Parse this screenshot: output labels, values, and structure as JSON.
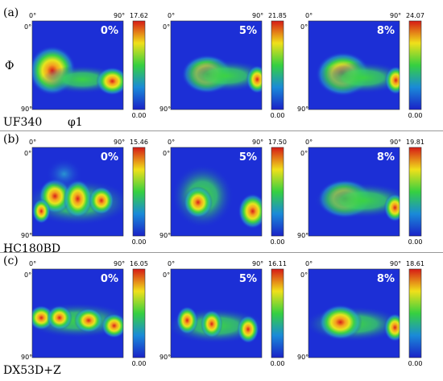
{
  "colors": {
    "background": "#1c2fd6",
    "low": "#1a2ad4",
    "mid": "#2fd64a",
    "high": "#d61a16"
  },
  "rows": [
    {
      "tag": "(a)",
      "material": "UF340",
      "phi_label": "Φ",
      "phi1_label": "φ1",
      "panels": [
        {
          "percent": "0%",
          "x_min": "0°",
          "x_max": "90°",
          "y_min": "0°",
          "y_max": "90°",
          "cb_max": "17.62",
          "cb_min": "0.00"
        },
        {
          "percent": "5%",
          "x_min": "0°",
          "x_max": "90°",
          "y_min": "0°",
          "y_max": "90°",
          "cb_max": "21.85",
          "cb_min": "0.00"
        },
        {
          "percent": "8%",
          "x_min": "0°",
          "x_max": "90°",
          "y_min": "0°",
          "y_max": "90°",
          "cb_max": "24.07",
          "cb_min": "0.00"
        }
      ]
    },
    {
      "tag": "(b)",
      "material": "HC180BD",
      "panels": [
        {
          "percent": "0%",
          "x_min": "0°",
          "x_max": "90°",
          "y_min": "0°",
          "y_max": "90°",
          "cb_max": "15.46",
          "cb_min": "0.00"
        },
        {
          "percent": "5%",
          "x_min": "0°",
          "x_max": "90°",
          "y_min": "0°",
          "y_max": "90°",
          "cb_max": "17.50",
          "cb_min": "0.00"
        },
        {
          "percent": "8%",
          "x_min": "0°",
          "x_max": "90°",
          "y_min": "0°",
          "y_max": "90°",
          "cb_max": "19.81",
          "cb_min": "0.00"
        }
      ]
    },
    {
      "tag": "(c)",
      "material": "DX53D+Z",
      "panels": [
        {
          "percent": "0%",
          "x_min": "0°",
          "x_max": "90°",
          "y_min": "0°",
          "y_max": "90°",
          "cb_max": "16.05",
          "cb_min": "0.00"
        },
        {
          "percent": "5%",
          "x_min": "0°",
          "x_max": "90°",
          "y_min": "0°",
          "y_max": "90°",
          "cb_max": "16.11",
          "cb_min": "0.00"
        },
        {
          "percent": "8%",
          "x_min": "0°",
          "x_max": "90°",
          "y_min": "0°",
          "y_max": "90°",
          "cb_max": "18.61",
          "cb_min": "0.00"
        }
      ]
    }
  ]
}
